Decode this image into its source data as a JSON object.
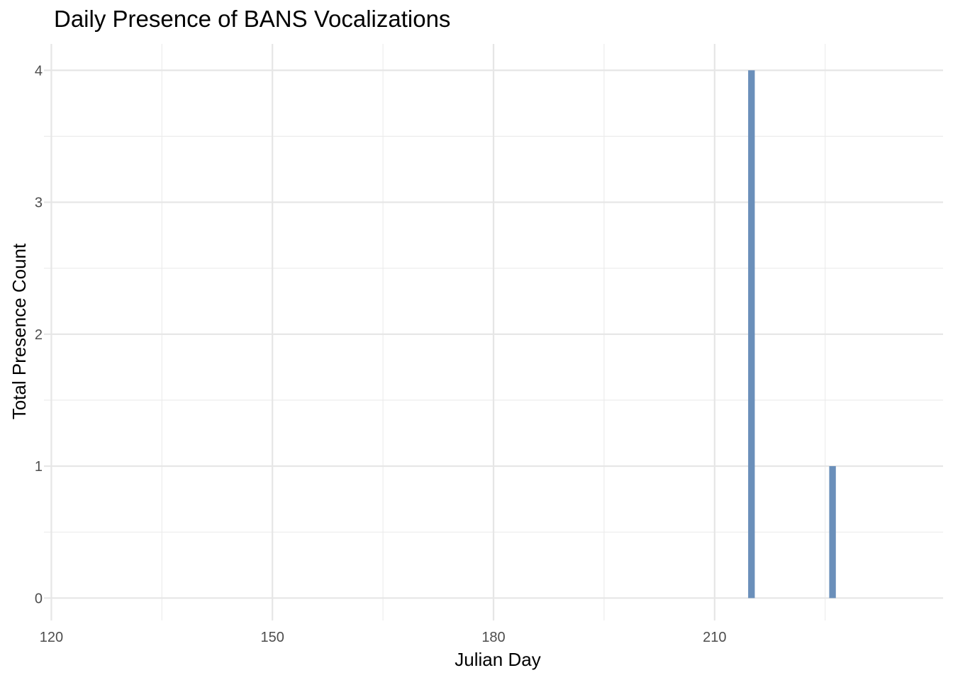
{
  "chart_data": {
    "type": "bar",
    "title": "Daily Presence of BANS Vocalizations",
    "xlabel": "Julian Day",
    "ylabel": "Total Presence Count",
    "x_ticks": [
      120,
      150,
      180,
      210
    ],
    "y_ticks": [
      0,
      1,
      2,
      3,
      4
    ],
    "xlim": [
      119,
      241
    ],
    "ylim": [
      -0.17,
      4.2
    ],
    "x": [
      215,
      226
    ],
    "values": [
      4,
      1
    ],
    "bar_color": "#6a8fba",
    "grid": true,
    "legend": "none"
  }
}
